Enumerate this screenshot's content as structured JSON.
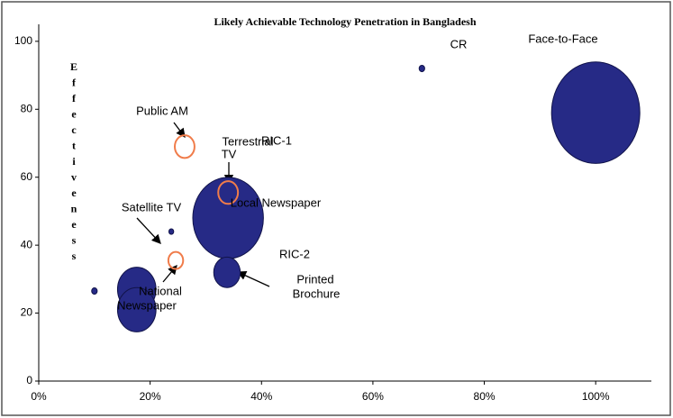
{
  "chart_data": {
    "type": "bubble",
    "title": "Likely Achievable Technology Penetration in Bangladesh",
    "y_label": "Effectiveness",
    "xlim": [
      0,
      110
    ],
    "ylim": [
      0,
      105
    ],
    "xticks": [
      {
        "value": 0,
        "label": "0%"
      },
      {
        "value": 20,
        "label": "20%"
      },
      {
        "value": 40,
        "label": "40%"
      },
      {
        "value": 60,
        "label": "60%"
      },
      {
        "value": 80,
        "label": "80%"
      },
      {
        "value": 100,
        "label": "100%"
      }
    ],
    "yticks": [
      0,
      20,
      40,
      60,
      80,
      100
    ],
    "series": [
      {
        "color": "#262a86",
        "style": "filled",
        "x": [
          100,
          68.8,
          34,
          33.8,
          17.6,
          17.6,
          10,
          23.8
        ],
        "y": [
          79,
          92,
          48,
          32,
          27,
          21,
          26.5,
          44
        ],
        "sizes": [
          100,
          0.4,
          64,
          9,
          19,
          19,
          0.4,
          0.3
        ]
      },
      {
        "color": "#f07c4a",
        "style": "ring",
        "x": [
          26.2,
          34,
          24.6
        ],
        "y": [
          69,
          55.5,
          35.5
        ],
        "sizes": [
          5,
          5,
          2.8
        ]
      }
    ],
    "annotations": [
      "Face-to-Face",
      "CR",
      "Public AM",
      "Terrestrial",
      "TV",
      "RIC-1",
      "Local Newspaper",
      "Satellite TV",
      "RIC-2",
      "National",
      "Newspaper",
      "Printed",
      "Brochure"
    ]
  }
}
